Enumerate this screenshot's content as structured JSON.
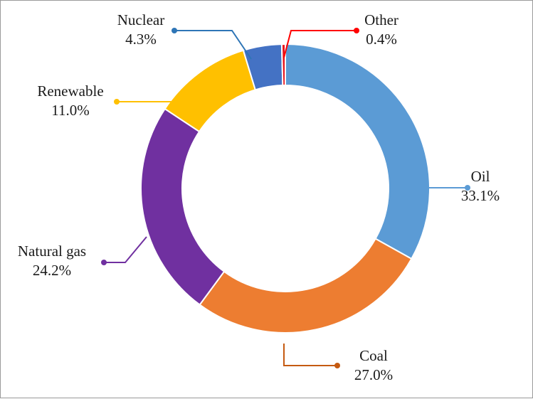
{
  "chart_data": {
    "type": "donut",
    "title": "",
    "slices": [
      {
        "name": "Oil",
        "value": 33.1,
        "label": "33.1%",
        "color": "#5b9bd5",
        "leader_color": "#5b9bd5"
      },
      {
        "name": "Coal",
        "value": 27.0,
        "label": "27.0%",
        "color": "#ed7d31",
        "leader_color": "#c55a11"
      },
      {
        "name": "Natural gas",
        "value": 24.2,
        "label": "24.2%",
        "color": "#7030a0",
        "leader_color": "#7030a0"
      },
      {
        "name": "Renewable",
        "value": 11.0,
        "label": "11.0%",
        "color": "#ffc000",
        "leader_color": "#ffc000"
      },
      {
        "name": "Nuclear",
        "value": 4.3,
        "label": "4.3%",
        "color": "#4472c4",
        "leader_color": "#2e75b6"
      },
      {
        "name": "Other",
        "value": 0.4,
        "label": "0.4%",
        "color": "#e8141d",
        "leader_color": "#ff0000"
      }
    ],
    "start": "12 o'clock",
    "direction": "clockwise",
    "legend": "none (direct labels with leader lines)",
    "background": "#ffffff",
    "border_color": "#9a9a9a"
  }
}
